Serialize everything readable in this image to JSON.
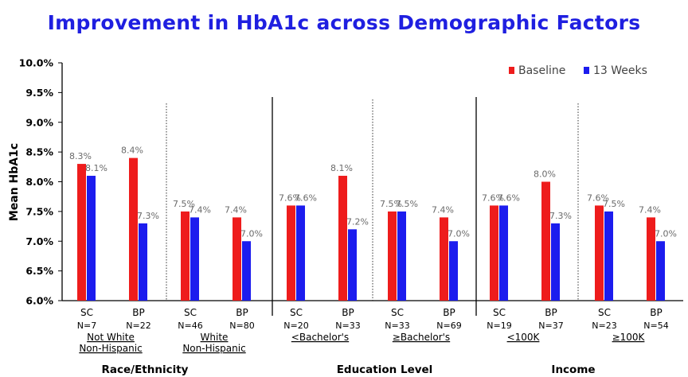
{
  "colors": {
    "title": "#1f1fe0",
    "baseline": "#ee1c1c",
    "weeks13": "#1c1cee",
    "text": "#000000",
    "label": "#6a6a6a"
  },
  "chart_data": {
    "type": "bar",
    "title": "Improvement in HbA1c across Demographic Factors",
    "ylabel": "Mean HbA1c",
    "ylim": [
      6.0,
      10.0
    ],
    "yticks": [
      "6.0%",
      "6.5%",
      "7.0%",
      "7.5%",
      "8.0%",
      "8.5%",
      "9.0%",
      "9.5%",
      "10.0%"
    ],
    "legend_position": "top-right",
    "series": [
      {
        "name": "Baseline",
        "color": "#ee1c1c"
      },
      {
        "name": "13 Weeks",
        "color": "#1c1cee"
      }
    ],
    "subgroups": [
      {
        "label_lines": [
          "Not White",
          "Non-Hispanic"
        ],
        "bars": [
          {
            "group": "SC",
            "n": "N=7",
            "values": [
              8.3,
              8.1
            ],
            "labels": [
              "8.3%",
              "8.1%"
            ]
          },
          {
            "group": "BP",
            "n": "N=22",
            "values": [
              8.4,
              7.3
            ],
            "labels": [
              "8.4%",
              "7.3%"
            ]
          }
        ]
      },
      {
        "label_lines": [
          "White",
          "Non-Hispanic"
        ],
        "bars": [
          {
            "group": "SC",
            "n": "N=46",
            "values": [
              7.5,
              7.4
            ],
            "labels": [
              "7.5%",
              "7.4%"
            ]
          },
          {
            "group": "BP",
            "n": "N=80",
            "values": [
              7.4,
              7.0
            ],
            "labels": [
              "7.4%",
              "7.0%"
            ]
          }
        ]
      },
      {
        "label_lines": [
          "<Bachelor's"
        ],
        "bars": [
          {
            "group": "SC",
            "n": "N=20",
            "values": [
              7.6,
              7.6
            ],
            "labels": [
              "7.6%",
              "7.6%"
            ]
          },
          {
            "group": "BP",
            "n": "N=33",
            "values": [
              8.1,
              7.2
            ],
            "labels": [
              "8.1%",
              "7.2%"
            ]
          }
        ]
      },
      {
        "label_lines": [
          "≥Bachelor's"
        ],
        "bars": [
          {
            "group": "SC",
            "n": "N=33",
            "values": [
              7.5,
              7.5
            ],
            "labels": [
              "7.5%",
              "7.5%"
            ]
          },
          {
            "group": "BP",
            "n": "N=69",
            "values": [
              7.4,
              7.0
            ],
            "labels": [
              "7.4%",
              "7.0%"
            ]
          }
        ]
      },
      {
        "label_lines": [
          "<100K"
        ],
        "bars": [
          {
            "group": "SC",
            "n": "N=19",
            "values": [
              7.6,
              7.6
            ],
            "labels": [
              "7.6%",
              "7.6%"
            ]
          },
          {
            "group": "BP",
            "n": "N=37",
            "values": [
              8.0,
              7.3
            ],
            "labels": [
              "8.0%",
              "7.3%"
            ]
          }
        ]
      },
      {
        "label_lines": [
          "≥100K"
        ],
        "bars": [
          {
            "group": "SC",
            "n": "N=23",
            "values": [
              7.6,
              7.5
            ],
            "labels": [
              "7.6%",
              "7.5%"
            ]
          },
          {
            "group": "BP",
            "n": "N=54",
            "values": [
              7.4,
              7.0
            ],
            "labels": [
              "7.4%",
              "7.0%"
            ]
          }
        ]
      }
    ],
    "categories": [
      "Race/Ethnicity",
      "Education Level",
      "Income"
    ]
  }
}
